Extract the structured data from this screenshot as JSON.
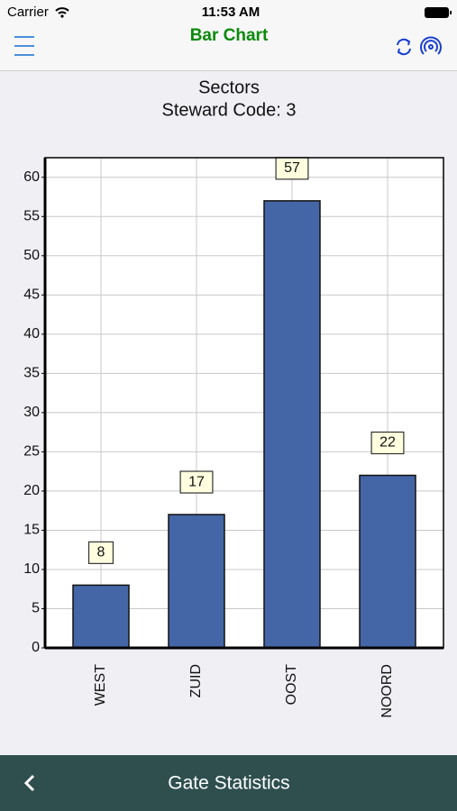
{
  "status_bar": {
    "carrier": "Carrier",
    "time": "11:53 AM"
  },
  "nav_bar": {
    "title": "Bar Chart"
  },
  "chart_data": {
    "type": "bar",
    "title": "Sectors",
    "subtitle": "Steward Code: 3",
    "categories": [
      "WEST",
      "ZUID",
      "OOST",
      "NOORD"
    ],
    "values": [
      8,
      17,
      57,
      22
    ],
    "color": "#4466a6",
    "ylim": [
      0,
      62.5
    ],
    "yticks": [
      0,
      5,
      10,
      15,
      20,
      25,
      30,
      35,
      40,
      45,
      50,
      55,
      60
    ],
    "grid": true
  },
  "footer": {
    "title": "Gate Statistics"
  }
}
